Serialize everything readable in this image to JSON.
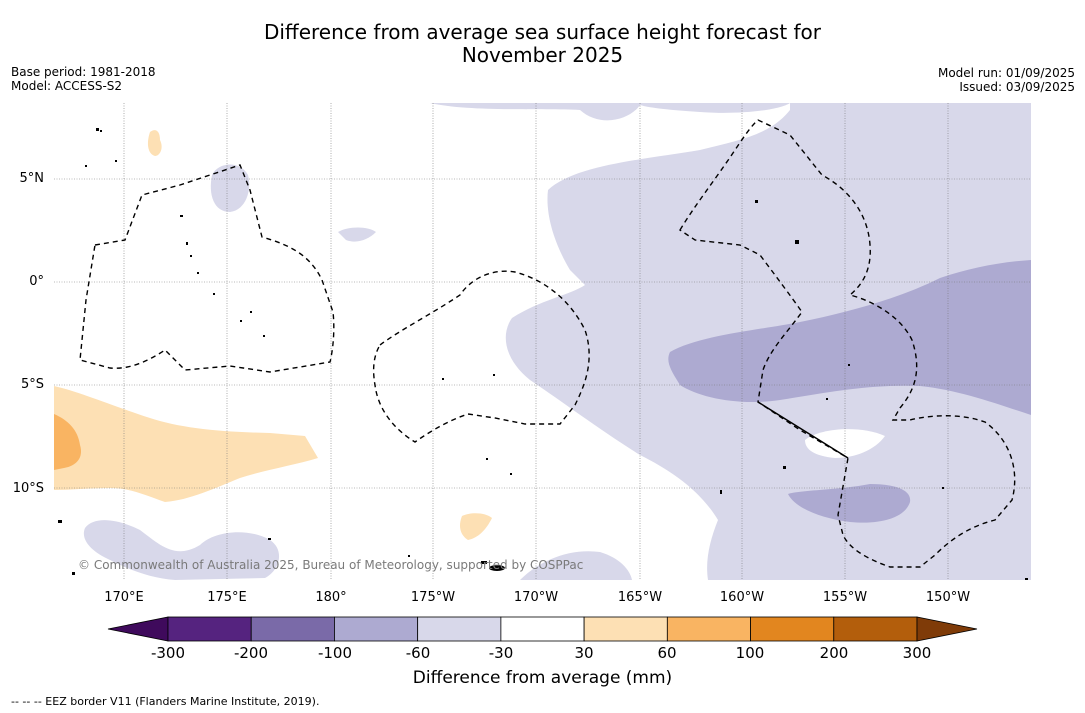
{
  "title_line1": "Difference from average sea surface height forecast for",
  "title_line2": "November 2025",
  "base_period": "Base period: 1981-2018",
  "model": "Model: ACCESS-S2",
  "model_run": "Model run: 01/09/2025",
  "issued": "Issued: 03/09/2025",
  "longitude_labels": [
    "170°E",
    "175°E",
    "180°",
    "175°W",
    "170°W",
    "165°W",
    "160°W",
    "155°W",
    "150°W"
  ],
  "latitude_labels": [
    "5°N",
    "0°",
    "5°S",
    "10°S"
  ],
  "copyright": "© Commonwealth of Australia 2025, Bureau of Meteorology, supported by COSPPac",
  "colorbar": {
    "title": "Difference from average (mm)",
    "ticks": [
      "-300",
      "-200",
      "-100",
      "-60",
      "-30",
      "30",
      "60",
      "100",
      "200",
      "300"
    ],
    "colors": [
      "#3f0a5c",
      "#55237f",
      "#7a6aa8",
      "#adaad1",
      "#d8d8ea",
      "#ffffff",
      "#fde0b4",
      "#f9b462",
      "#e2861f",
      "#b35e0c",
      "#7f3b08"
    ]
  },
  "footer": "--  --  -- EEZ border V11 (Flanders Marine Institute, 2019)."
}
